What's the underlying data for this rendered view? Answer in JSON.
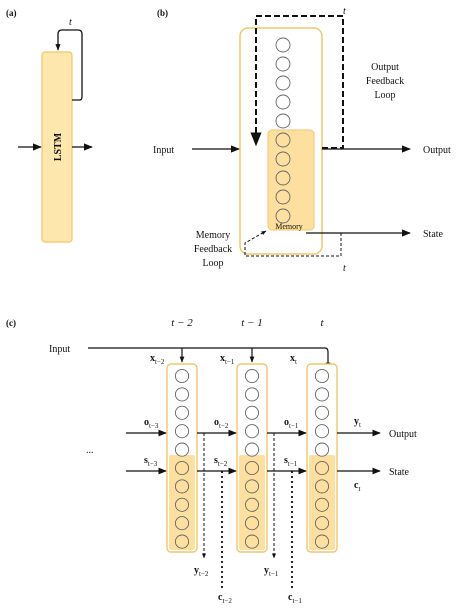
{
  "panel_a": {
    "label": "(a)",
    "lstm_label": "LSTM",
    "loop_label": "t"
  },
  "panel_b": {
    "label": "(b)",
    "input_label": "Input",
    "output_label": "Output",
    "state_label": "State",
    "memory_label": "Memory",
    "output_feedback_lines": [
      "Output",
      "Feedback",
      "Loop"
    ],
    "memory_feedback_lines": [
      "Memory",
      "Feedback",
      "Loop"
    ],
    "output_loop_t": "t",
    "memory_loop_t": "t"
  },
  "panel_c": {
    "label": "(c)",
    "input_label": "Input",
    "output_label": "Output",
    "state_label": "State",
    "ellipsis": "...",
    "time_steps": [
      {
        "t": "t − 2",
        "x": "x",
        "x_sub": "t−2",
        "o": "o",
        "o_sub": "t−3",
        "s": "s",
        "s_sub": "t−3",
        "y": "y",
        "y_sub": "t−2",
        "c": "c",
        "c_sub": "t−2"
      },
      {
        "t": "t − 1",
        "x": "x",
        "x_sub": "t−1",
        "o": "o",
        "o_sub": "t−2",
        "s": "s",
        "s_sub": "t−2",
        "y": "y",
        "y_sub": "t−1",
        "c": "c",
        "c_sub": "t−1"
      },
      {
        "t": "t",
        "x": "x",
        "x_sub": "t",
        "o": "o",
        "o_sub": "t−1",
        "s": "s",
        "s_sub": "t−1",
        "y": "y",
        "y_sub": "t",
        "c": "c",
        "c_sub": "t"
      }
    ]
  },
  "colors": {
    "cell_fill": "#fde7ac",
    "cell_stroke": "#f2c668",
    "memory_fill": "#fde0a0",
    "line": "#111111"
  }
}
